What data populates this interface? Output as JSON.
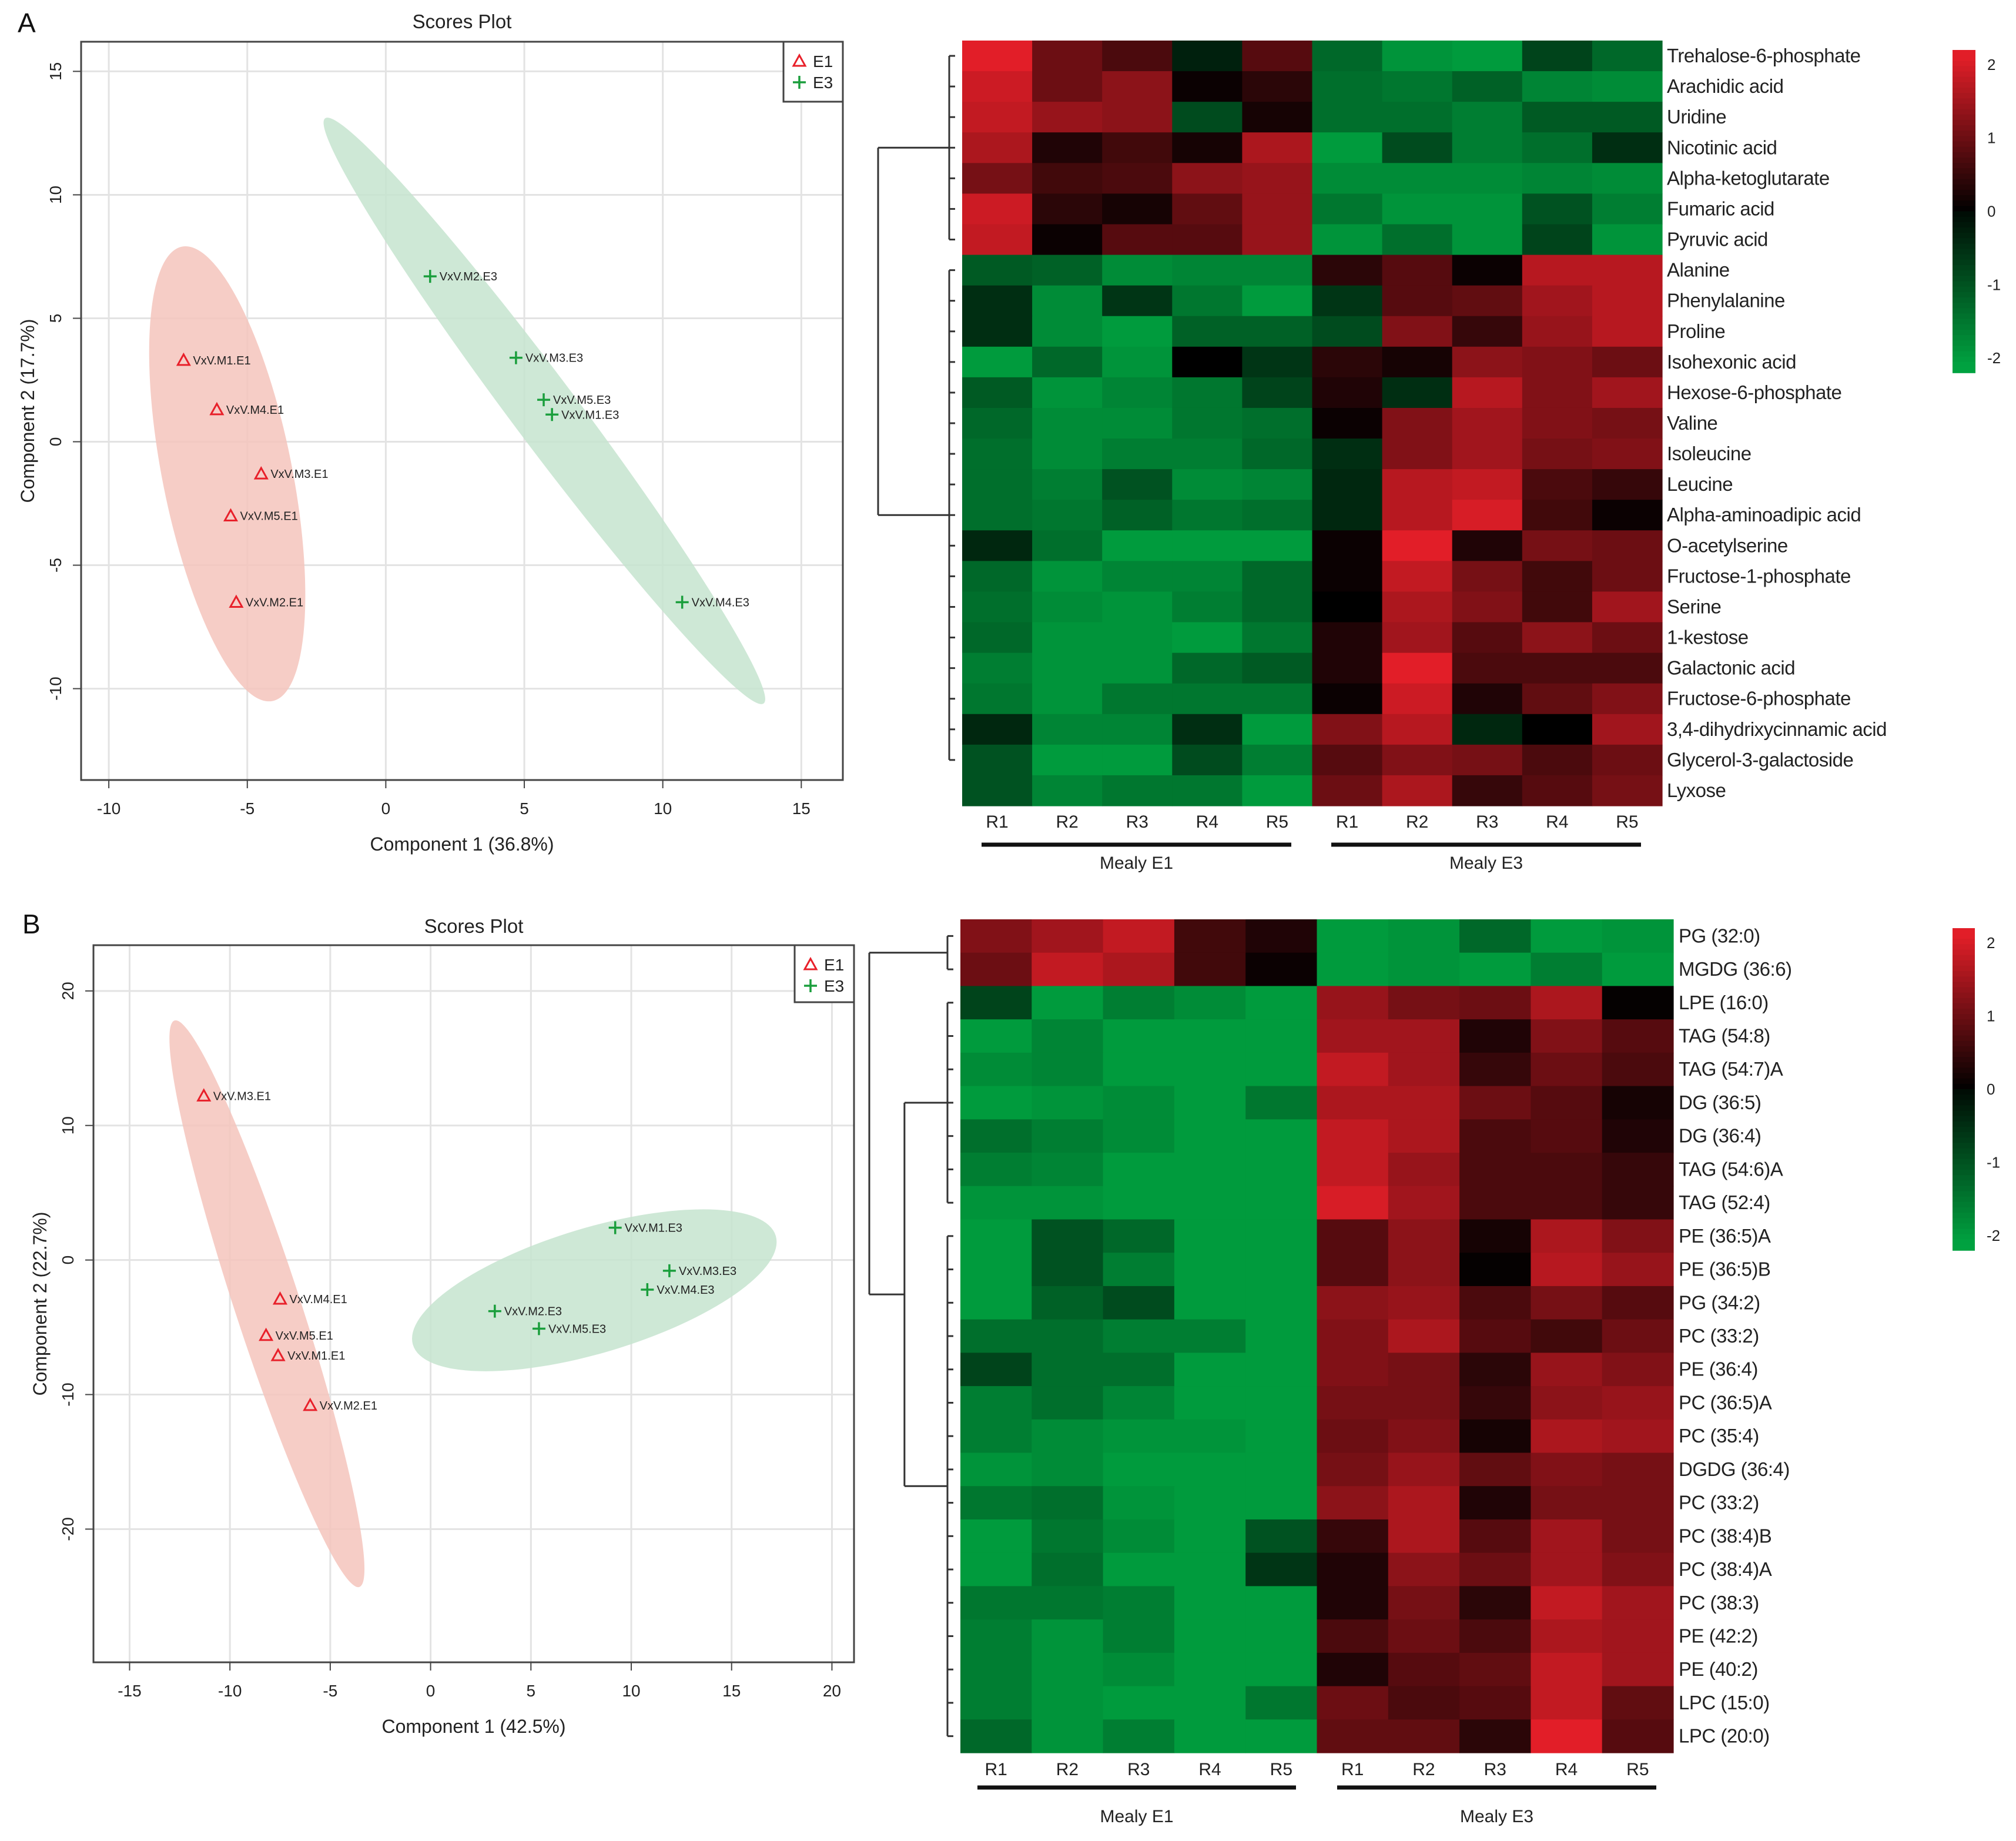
{
  "panels": [
    "A",
    "B"
  ],
  "colors": {
    "e1": "#e8202a",
    "e3": "#1a9e3c",
    "e1_fill": "#f4c4bc",
    "e3_fill": "#c6e4cf",
    "hm_low": "#00a040",
    "hm_mid": "#000000",
    "hm_high": "#e02030"
  },
  "chart_data": [
    {
      "type": "scatter",
      "panel": "A",
      "title": "Scores Plot",
      "xlabel": "Component 1 (36.8%)",
      "ylabel": "Component 2 (17.7%)",
      "xlim": [
        -11.0,
        16.5
      ],
      "ylim": [
        -13.7,
        16.2
      ],
      "xticks": [
        -10,
        -5,
        0,
        5,
        10,
        15
      ],
      "yticks": [
        -10,
        -5,
        0,
        5,
        10,
        15
      ],
      "grid": true,
      "legend_position": "top-right",
      "legend": [
        {
          "name": "E1",
          "marker": "triangle"
        },
        {
          "name": "E3",
          "marker": "plus"
        }
      ],
      "series": [
        {
          "name": "E1",
          "marker": "triangle",
          "ellipse": {
            "tip1": [
              -7.36,
              7.9
            ],
            "tip2": [
              -4.09,
              -10.5
            ],
            "minor_ratio": 0.28
          },
          "points": [
            {
              "label": "VxV.M1.E1",
              "x": -7.3,
              "y": 3.3
            },
            {
              "label": "VxV.M4.E1",
              "x": -6.1,
              "y": 1.3
            },
            {
              "label": "VxV.M3.E1",
              "x": -4.5,
              "y": -1.3
            },
            {
              "label": "VxV.M5.E1",
              "x": -5.6,
              "y": -3.0
            },
            {
              "label": "VxV.M2.E1",
              "x": -5.4,
              "y": -6.5
            }
          ]
        },
        {
          "name": "E3",
          "marker": "plus",
          "ellipse": {
            "tip1": [
              -2.19,
              13.1
            ],
            "tip2": [
              13.64,
              -10.6
            ],
            "minor_ratio": 0.09
          },
          "points": [
            {
              "label": "VxV.M2.E3",
              "x": 1.6,
              "y": 6.7
            },
            {
              "label": "VxV.M3.E3",
              "x": 4.7,
              "y": 3.4
            },
            {
              "label": "VxV.M5.E3",
              "x": 5.7,
              "y": 1.7
            },
            {
              "label": "VxV.M1.E3",
              "x": 6.0,
              "y": 1.1
            },
            {
              "label": "VxV.M4.E3",
              "x": 10.7,
              "y": -6.5
            }
          ]
        }
      ]
    },
    {
      "type": "heatmap",
      "panel": "A",
      "columns": [
        "R1",
        "R2",
        "R3",
        "R4",
        "R5",
        "R1",
        "R2",
        "R3",
        "R4",
        "R5"
      ],
      "groups": [
        {
          "label": "Mealy E1",
          "span": 5
        },
        {
          "label": "Mealy E3",
          "span": 5
        }
      ],
      "colorbar": {
        "ticks": [
          2,
          1,
          0,
          -1,
          -2
        ],
        "range": [
          -2.2,
          2.2
        ]
      },
      "clusters": [
        [
          0,
          6
        ],
        [
          7,
          23
        ]
      ],
      "rows": [
        {
          "label": "Trehalose-6-phosphate",
          "values": [
            2.2,
            1.0,
            0.7,
            -0.3,
            0.8,
            -1.3,
            -1.9,
            -2.0,
            -0.8,
            -1.3
          ]
        },
        {
          "label": "Arachidic acid",
          "values": [
            1.9,
            1.0,
            1.3,
            0.1,
            0.4,
            -1.4,
            -1.5,
            -1.2,
            -1.7,
            -1.8
          ]
        },
        {
          "label": "Uridine",
          "values": [
            1.8,
            1.4,
            1.3,
            -0.9,
            0.2,
            -1.4,
            -1.4,
            -1.6,
            -1.1,
            -1.1
          ]
        },
        {
          "label": "Nicotinic acid",
          "values": [
            1.6,
            0.3,
            0.6,
            0.2,
            1.6,
            -2.0,
            -0.9,
            -1.6,
            -1.4,
            -0.5
          ]
        },
        {
          "label": "Alpha-ketoglutarate",
          "values": [
            1.1,
            0.6,
            0.7,
            1.3,
            1.4,
            -1.8,
            -1.8,
            -1.8,
            -1.7,
            -1.8
          ]
        },
        {
          "label": "Fumaric acid",
          "values": [
            1.9,
            0.4,
            0.2,
            0.9,
            1.4,
            -1.5,
            -1.9,
            -1.9,
            -1.0,
            -1.6
          ]
        },
        {
          "label": "Pyruvic acid",
          "values": [
            1.8,
            0.1,
            0.8,
            0.8,
            1.4,
            -1.9,
            -1.4,
            -1.9,
            -0.8,
            -1.9
          ]
        },
        {
          "label": "Alanine",
          "values": [
            -1.1,
            -1.2,
            -1.8,
            -1.7,
            -1.7,
            0.4,
            0.8,
            0.1,
            1.7,
            1.7
          ]
        },
        {
          "label": "Phenylalanine",
          "values": [
            -0.5,
            -1.8,
            -0.6,
            -1.5,
            -2.0,
            -0.6,
            0.8,
            0.9,
            1.5,
            1.7
          ]
        },
        {
          "label": "Proline",
          "values": [
            -0.5,
            -1.8,
            -2.0,
            -1.2,
            -1.2,
            -0.9,
            1.2,
            0.5,
            1.4,
            1.7
          ]
        },
        {
          "label": "Isohexonic acid",
          "values": [
            -2.0,
            -1.3,
            -1.9,
            0.0,
            -0.6,
            0.4,
            0.2,
            1.3,
            1.2,
            1.0
          ]
        },
        {
          "label": "Hexose-6-phosphate",
          "values": [
            -1.1,
            -1.9,
            -1.7,
            -1.5,
            -0.8,
            0.3,
            -0.5,
            1.7,
            1.2,
            1.5
          ]
        },
        {
          "label": "Valine",
          "values": [
            -1.3,
            -1.8,
            -1.8,
            -1.5,
            -1.4,
            0.1,
            1.2,
            1.5,
            1.2,
            1.1
          ]
        },
        {
          "label": "Isoleucine",
          "values": [
            -1.4,
            -1.8,
            -1.6,
            -1.6,
            -1.3,
            -0.5,
            1.2,
            1.5,
            1.1,
            1.2
          ]
        },
        {
          "label": "Leucine",
          "values": [
            -1.4,
            -1.6,
            -1.0,
            -1.8,
            -1.7,
            -0.4,
            1.7,
            1.8,
            0.7,
            0.5
          ]
        },
        {
          "label": "Alpha-aminoadipic acid",
          "values": [
            -1.4,
            -1.5,
            -1.2,
            -1.5,
            -1.4,
            -0.4,
            1.7,
            2.0,
            0.6,
            0.1
          ]
        },
        {
          "label": "O-acetylserine",
          "values": [
            -0.4,
            -1.4,
            -2.0,
            -2.0,
            -2.0,
            0.1,
            2.1,
            0.3,
            1.1,
            1.0
          ]
        },
        {
          "label": "Fructose-1-phosphate",
          "values": [
            -1.3,
            -1.9,
            -1.7,
            -1.7,
            -1.3,
            0.1,
            1.8,
            1.1,
            0.6,
            1.0
          ]
        },
        {
          "label": "Serine",
          "values": [
            -1.4,
            -1.8,
            -1.9,
            -1.6,
            -1.3,
            0.0,
            1.6,
            1.2,
            0.6,
            1.5
          ]
        },
        {
          "label": "1-kestose",
          "values": [
            -1.3,
            -1.9,
            -1.9,
            -2.0,
            -1.5,
            0.3,
            1.5,
            0.8,
            1.3,
            1.0
          ]
        },
        {
          "label": "Galactonic acid",
          "values": [
            -1.6,
            -1.9,
            -1.9,
            -1.3,
            -1.1,
            0.3,
            2.1,
            0.7,
            0.7,
            0.7
          ]
        },
        {
          "label": "Fructose-6-phosphate",
          "values": [
            -1.5,
            -1.9,
            -1.5,
            -1.5,
            -1.5,
            0.1,
            1.9,
            0.3,
            0.9,
            1.2
          ]
        },
        {
          "label": "3,4-dihydrixycinnamic acid",
          "values": [
            -0.4,
            -1.7,
            -1.7,
            -0.5,
            -2.0,
            1.2,
            1.7,
            -0.4,
            0.0,
            1.5
          ]
        },
        {
          "label": "Glycerol-3-galactoside",
          "values": [
            -1.0,
            -2.0,
            -2.0,
            -0.9,
            -1.6,
            0.8,
            1.2,
            1.1,
            0.7,
            1.0
          ]
        },
        {
          "label": "Lyxose",
          "values": [
            -1.0,
            -1.7,
            -1.5,
            -1.5,
            -2.0,
            1.0,
            1.6,
            0.5,
            0.8,
            1.1
          ]
        }
      ]
    },
    {
      "type": "scatter",
      "panel": "B",
      "title": "Scores Plot",
      "xlabel": "Component 1 (42.5%)",
      "ylabel": "Component 2 (22.7%)",
      "xlim": [
        -16.8,
        21.1
      ],
      "ylim": [
        -29.9,
        23.4
      ],
      "xticks": [
        -15,
        -10,
        -5,
        0,
        5,
        10,
        15,
        20
      ],
      "yticks": [
        -20,
        -10,
        0,
        10,
        20
      ],
      "grid": true,
      "legend_position": "top-right",
      "legend": [
        {
          "name": "E1",
          "marker": "triangle"
        },
        {
          "name": "E3",
          "marker": "plus"
        }
      ],
      "series": [
        {
          "name": "E1",
          "marker": "triangle",
          "ellipse": {
            "tip1": [
              -12.76,
              17.8
            ],
            "tip2": [
              -3.55,
              -24.3
            ],
            "minor_ratio": 0.11
          },
          "points": [
            {
              "label": "VxV.M3.E1",
              "x": -11.3,
              "y": 12.2
            },
            {
              "label": "VxV.M4.E1",
              "x": -7.5,
              "y": -2.9
            },
            {
              "label": "VxV.M5.E1",
              "x": -8.2,
              "y": -5.6
            },
            {
              "label": "VxV.M1.E1",
              "x": -7.6,
              "y": -7.1
            },
            {
              "label": "VxV.M2.E1",
              "x": -6.0,
              "y": -10.8
            }
          ]
        },
        {
          "name": "E3",
          "marker": "plus",
          "ellipse": {
            "tip1": [
              -0.88,
              -6.3
            ],
            "tip2": [
              17.2,
              1.8
            ],
            "minor_ratio": 0.33
          },
          "points": [
            {
              "label": "VxV.M1.E3",
              "x": 9.2,
              "y": 2.4
            },
            {
              "label": "VxV.M3.E3",
              "x": 11.9,
              "y": -0.8
            },
            {
              "label": "VxV.M4.E3",
              "x": 10.8,
              "y": -2.2
            },
            {
              "label": "VxV.M2.E3",
              "x": 3.2,
              "y": -3.8
            },
            {
              "label": "VxV.M5.E3",
              "x": 5.4,
              "y": -5.1
            }
          ]
        }
      ]
    },
    {
      "type": "heatmap",
      "panel": "B",
      "columns": [
        "R1",
        "R2",
        "R3",
        "R4",
        "R5",
        "R1",
        "R2",
        "R3",
        "R4",
        "R5"
      ],
      "groups": [
        {
          "label": "Mealy E1",
          "span": 5
        },
        {
          "label": "Mealy E3",
          "span": 5
        }
      ],
      "colorbar": {
        "ticks": [
          2,
          1,
          0,
          -1,
          -2
        ],
        "range": [
          -2.2,
          2.2
        ]
      },
      "clusters": [
        [
          0,
          1
        ],
        [
          2,
          8
        ],
        [
          9,
          24
        ]
      ],
      "rows": [
        {
          "label": "PG (32:0)",
          "values": [
            1.2,
            1.5,
            1.8,
            0.6,
            0.3,
            -2.0,
            -1.9,
            -1.3,
            -2.0,
            -1.9
          ]
        },
        {
          "label": "MGDG (36:6)",
          "values": [
            1.0,
            1.8,
            1.6,
            0.6,
            0.1,
            -2.0,
            -1.9,
            -2.0,
            -1.6,
            -2.0
          ]
        },
        {
          "label": "LPE (16:0)",
          "values": [
            -0.8,
            -2.0,
            -1.6,
            -1.8,
            -2.0,
            1.4,
            1.1,
            1.0,
            1.6,
            0.05
          ]
        },
        {
          "label": "TAG (54:8)",
          "values": [
            -2.0,
            -1.7,
            -2.0,
            -2.0,
            -2.0,
            1.5,
            1.5,
            0.3,
            1.2,
            0.8
          ]
        },
        {
          "label": "TAG (54:7)A",
          "values": [
            -1.8,
            -1.7,
            -2.0,
            -2.0,
            -2.0,
            1.8,
            1.5,
            0.5,
            1.0,
            0.7
          ]
        },
        {
          "label": "DG (36:5)",
          "values": [
            -2.0,
            -1.9,
            -1.8,
            -2.0,
            -1.5,
            1.6,
            1.6,
            1.0,
            0.8,
            0.2
          ]
        },
        {
          "label": "DG (36:4)",
          "values": [
            -1.4,
            -1.6,
            -1.8,
            -2.0,
            -2.0,
            1.8,
            1.6,
            0.7,
            0.8,
            0.3
          ]
        },
        {
          "label": "TAG (54:6)A",
          "values": [
            -1.6,
            -1.7,
            -2.0,
            -2.0,
            -2.0,
            1.8,
            1.4,
            0.7,
            0.7,
            0.5
          ]
        },
        {
          "label": "TAG (52:4)",
          "values": [
            -1.9,
            -1.9,
            -2.0,
            -2.0,
            -2.0,
            2.0,
            1.5,
            0.7,
            0.7,
            0.5
          ]
        },
        {
          "label": "PE (36:5)A",
          "values": [
            -2.0,
            -1.0,
            -1.3,
            -2.0,
            -2.0,
            0.8,
            1.3,
            0.2,
            1.6,
            1.2
          ]
        },
        {
          "label": "PE (36:5)B",
          "values": [
            -2.0,
            -1.0,
            -1.6,
            -2.0,
            -2.0,
            0.8,
            1.3,
            0.05,
            1.7,
            1.4
          ]
        },
        {
          "label": "PG (34:2)",
          "values": [
            -2.0,
            -1.2,
            -0.9,
            -2.0,
            -2.0,
            1.3,
            1.4,
            0.7,
            1.1,
            0.8
          ]
        },
        {
          "label": "PC (33:2)",
          "values": [
            -1.4,
            -1.4,
            -1.6,
            -1.6,
            -2.0,
            1.2,
            1.6,
            0.8,
            0.6,
            1.0
          ]
        },
        {
          "label": "PE (36:4)",
          "values": [
            -0.8,
            -1.4,
            -1.4,
            -2.0,
            -2.0,
            1.2,
            1.1,
            0.4,
            1.4,
            1.2
          ]
        },
        {
          "label": "PC (36:5)A",
          "values": [
            -1.6,
            -1.4,
            -1.7,
            -2.0,
            -2.0,
            1.1,
            1.1,
            0.5,
            1.3,
            1.4
          ]
        },
        {
          "label": "PC (35:4)",
          "values": [
            -1.6,
            -1.8,
            -1.9,
            -1.9,
            -2.0,
            1.0,
            1.2,
            0.2,
            1.6,
            1.5
          ]
        },
        {
          "label": "DGDG (36:4)",
          "values": [
            -1.9,
            -1.8,
            -2.0,
            -2.0,
            -2.0,
            1.1,
            1.4,
            0.9,
            1.2,
            1.1
          ]
        },
        {
          "label": "PC (33:2)",
          "values": [
            -1.5,
            -1.4,
            -1.9,
            -2.0,
            -2.0,
            1.3,
            1.6,
            0.3,
            1.1,
            1.1
          ]
        },
        {
          "label": "PC (38:4)B",
          "values": [
            -2.0,
            -1.5,
            -1.8,
            -2.0,
            -1.0,
            0.5,
            1.6,
            0.8,
            1.5,
            1.1
          ]
        },
        {
          "label": "PC (38:4)A",
          "values": [
            -2.0,
            -1.4,
            -2.0,
            -2.0,
            -0.6,
            0.3,
            1.3,
            1.0,
            1.5,
            1.2
          ]
        },
        {
          "label": "PC (38:3)",
          "values": [
            -1.5,
            -1.5,
            -1.6,
            -2.0,
            -2.0,
            0.3,
            1.1,
            0.4,
            1.8,
            1.5
          ]
        },
        {
          "label": "PE (42:2)",
          "values": [
            -1.6,
            -1.9,
            -1.6,
            -2.0,
            -2.0,
            0.7,
            1.0,
            0.7,
            1.6,
            1.5
          ]
        },
        {
          "label": "PE (40:2)",
          "values": [
            -1.6,
            -1.9,
            -1.8,
            -2.0,
            -2.0,
            0.3,
            0.8,
            0.9,
            1.8,
            1.5
          ]
        },
        {
          "label": "LPC (15:0)",
          "values": [
            -1.6,
            -1.9,
            -2.0,
            -2.0,
            -1.5,
            1.0,
            0.7,
            0.8,
            1.8,
            0.9
          ]
        },
        {
          "label": "LPC (20:0)",
          "values": [
            -1.3,
            -1.9,
            -1.6,
            -2.0,
            -2.0,
            0.9,
            0.9,
            0.4,
            2.1,
            0.8
          ]
        }
      ]
    }
  ]
}
